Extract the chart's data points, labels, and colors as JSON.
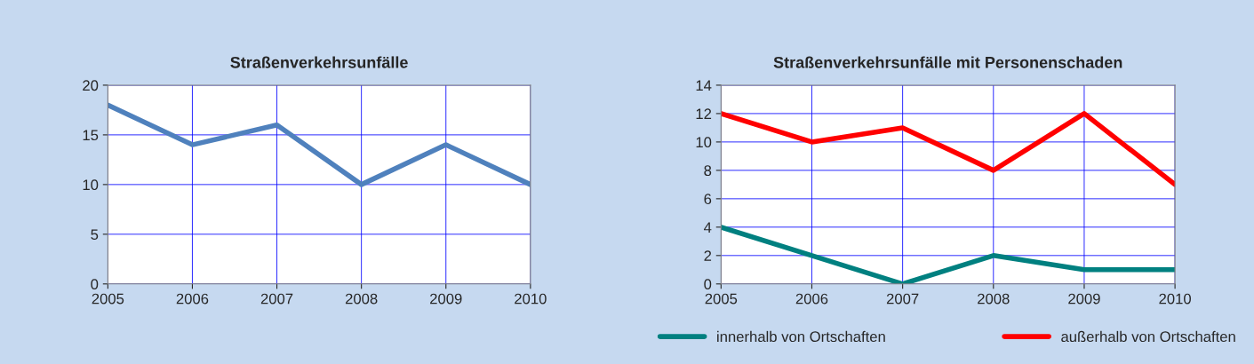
{
  "chart_data": [
    {
      "type": "line",
      "title": "Straßenverkehrsunfälle",
      "x": [
        2005,
        2006,
        2007,
        2008,
        2009,
        2010
      ],
      "series": [
        {
          "color": "#4f81bd",
          "values": [
            18,
            14,
            16,
            10,
            14,
            10
          ]
        }
      ],
      "xlim": [
        2005,
        2010
      ],
      "xticks": [
        2005,
        2006,
        2007,
        2008,
        2009,
        2010
      ],
      "ylim": [
        0,
        20
      ],
      "yticks": [
        0,
        5,
        10,
        15,
        20
      ],
      "grid": true,
      "marker": "none",
      "line_style": "solid"
    },
    {
      "type": "line",
      "title": "Straßenverkehrsunfälle mit Personenschaden",
      "x": [
        2005,
        2006,
        2007,
        2008,
        2009,
        2010
      ],
      "series": [
        {
          "name": "innerhalb von Ortschaften",
          "color": "#008080",
          "values": [
            4,
            2,
            0,
            2,
            1,
            1
          ]
        },
        {
          "name": "außerhalb von Ortschaften",
          "color": "#ff0000",
          "values": [
            12,
            10,
            11,
            8,
            12,
            7
          ]
        }
      ],
      "xlim": [
        2005,
        2010
      ],
      "xticks": [
        2005,
        2006,
        2007,
        2008,
        2009,
        2010
      ],
      "ylim": [
        0,
        14
      ],
      "yticks": [
        0,
        2,
        4,
        6,
        8,
        10,
        12,
        14
      ],
      "grid": true,
      "legend": "bottom",
      "marker": "none",
      "line_style": "solid"
    }
  ]
}
